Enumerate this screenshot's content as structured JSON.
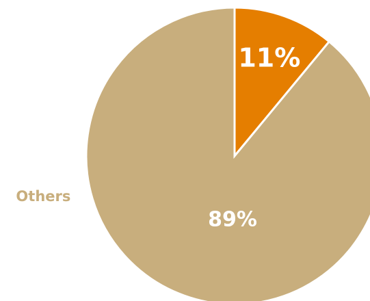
{
  "chart_data": {
    "type": "pie",
    "categories": [
      null,
      "Others"
    ],
    "values": [
      11,
      89
    ],
    "value_labels": [
      "11%",
      "89%"
    ],
    "colors": [
      "#e57e00",
      "#c8ae7d"
    ]
  }
}
